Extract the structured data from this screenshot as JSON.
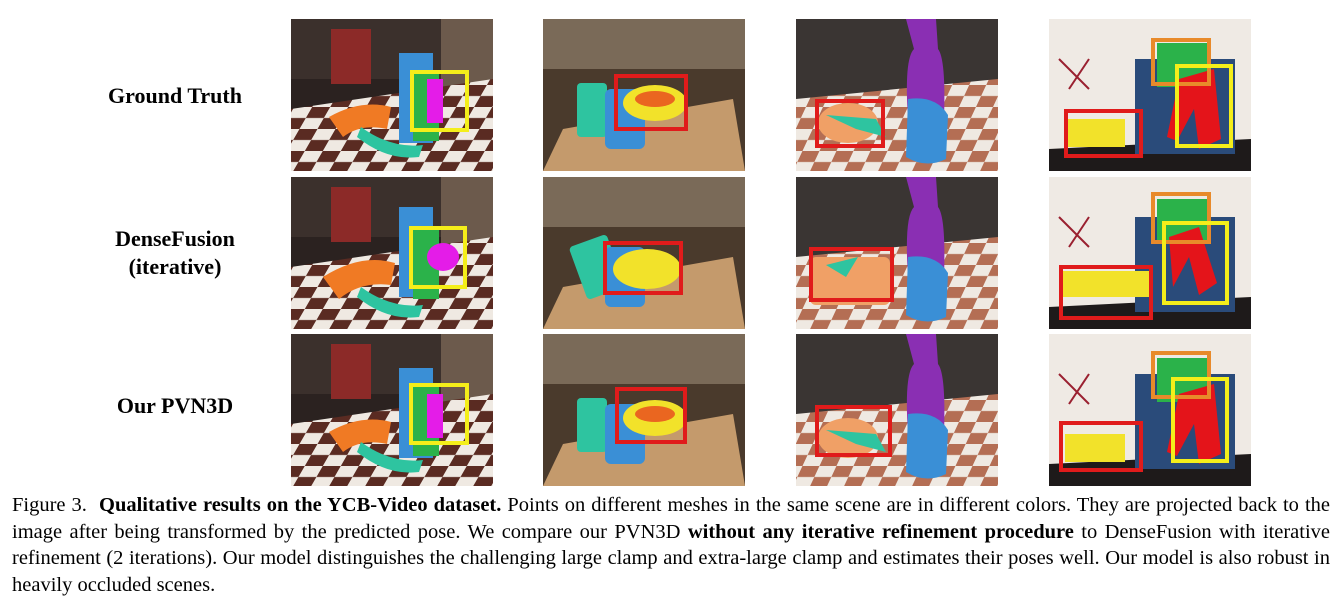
{
  "figure": {
    "row_labels": [
      {
        "lines": [
          "Ground Truth"
        ]
      },
      {
        "lines": [
          "DenseFusion",
          "(iterative)"
        ]
      },
      {
        "lines": [
          "Our PVN3D"
        ]
      }
    ],
    "colors": {
      "box_red": "#e01b1b",
      "box_yellow": "#f4ee1a",
      "box_orange": "#e88a2a",
      "drill_orange": "#f07a24",
      "banana_teal": "#2ec4a0",
      "mug_blue": "#3a8fd6",
      "clamp_green": "#2bb24a",
      "magenta": "#e41ce8",
      "bottle_purple": "#8a2fb3",
      "bowl_yellow": "#f2e22a",
      "clamp_red": "#e4141a",
      "table_brown": "#c49a6c"
    }
  },
  "caption": {
    "label": "Figure 3.",
    "title": "Qualitative results on the YCB-Video dataset.",
    "text1": "Points on different meshes in the same scene are in different colors. They are projected back to the image after being transformed by the predicted pose. We compare our PVN3D",
    "bold2": "without any iterative refinement procedure",
    "text2": "to DenseFusion with iterative refinement (2 iterations). Our model distinguishes the challenging large clamp and extra-large clamp and estimates their poses well. Our model is also robust in heavily occluded scenes."
  }
}
